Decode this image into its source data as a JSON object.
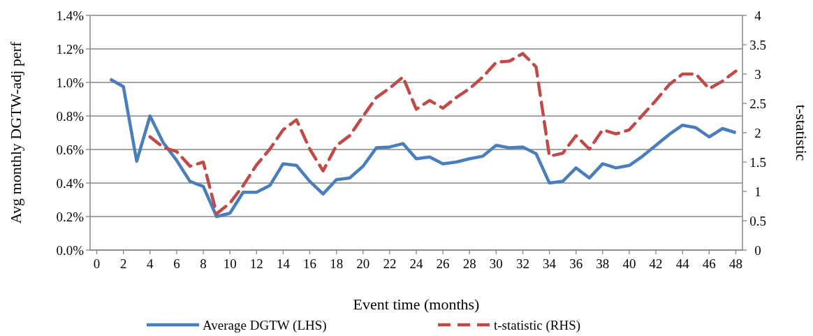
{
  "chart_data": {
    "type": "line",
    "xlabel": "Event time (months)",
    "ylabel": "Avg monthly DGTW-adj perf",
    "y2label": "t-statistic",
    "x": [
      1,
      2,
      3,
      4,
      5,
      6,
      7,
      8,
      9,
      10,
      11,
      12,
      13,
      14,
      15,
      16,
      17,
      18,
      19,
      20,
      21,
      22,
      23,
      24,
      25,
      26,
      27,
      28,
      29,
      30,
      31,
      32,
      33,
      34,
      35,
      36,
      37,
      38,
      39,
      40,
      41,
      42,
      43,
      44,
      45,
      46,
      47,
      48
    ],
    "xlim": [
      -0.5,
      48.5
    ],
    "xticks": [
      0,
      2,
      4,
      6,
      8,
      10,
      12,
      14,
      16,
      18,
      20,
      22,
      24,
      26,
      28,
      30,
      32,
      34,
      36,
      38,
      40,
      42,
      44,
      46,
      48
    ],
    "series": [
      {
        "name": "Average DGTW (LHS)",
        "color": "#4a7ebb",
        "line_style": "solid",
        "values": [
          1.02,
          0.975,
          0.53,
          0.8,
          0.64,
          0.535,
          0.41,
          0.38,
          0.2,
          0.22,
          0.345,
          0.345,
          0.385,
          0.515,
          0.505,
          0.41,
          0.335,
          0.42,
          0.43,
          0.5,
          0.61,
          0.615,
          0.635,
          0.545,
          0.555,
          0.515,
          0.525,
          0.545,
          0.56,
          0.625,
          0.61,
          0.615,
          0.575,
          0.4,
          0.41,
          0.49,
          0.43,
          0.515,
          0.49,
          0.505,
          0.56,
          0.625,
          0.69,
          0.745,
          0.73,
          0.675,
          0.725,
          0.7
        ]
      },
      {
        "name": "t-statistic (RHS)",
        "color": "#be4b48",
        "line_style": "dashed",
        "axis": "y2",
        "values": [
          null,
          null,
          null,
          1.93,
          1.75,
          1.68,
          1.43,
          1.5,
          0.62,
          0.8,
          1.1,
          1.45,
          1.72,
          2.05,
          2.22,
          1.72,
          1.35,
          1.78,
          1.95,
          2.28,
          2.6,
          2.76,
          2.95,
          2.4,
          2.55,
          2.42,
          2.6,
          2.75,
          2.95,
          3.2,
          3.22,
          3.35,
          3.12,
          1.6,
          1.65,
          1.95,
          1.72,
          2.05,
          1.98,
          2.05,
          2.3,
          2.55,
          2.82,
          3.0,
          3.0,
          2.75,
          2.88,
          3.05
        ]
      }
    ],
    "ylim": [
      0,
      1.4
    ],
    "yticks": [
      {
        "value": 0,
        "label": "0.0%"
      },
      {
        "value": 0.2,
        "label": "0.2%"
      },
      {
        "value": 0.4,
        "label": "0.4%"
      },
      {
        "value": 0.6,
        "label": "0.6%"
      },
      {
        "value": 0.8,
        "label": "0.8%"
      },
      {
        "value": 1.0,
        "label": "1.0%"
      },
      {
        "value": 1.2,
        "label": "1.2%"
      },
      {
        "value": 1.4,
        "label": "1.4%"
      }
    ],
    "y2lim": [
      0,
      4
    ],
    "y2ticks": [
      0,
      0.5,
      1,
      1.5,
      2,
      2.5,
      3,
      3.5,
      4
    ],
    "grid": "y",
    "legend": "bottom",
    "marker": "none"
  }
}
